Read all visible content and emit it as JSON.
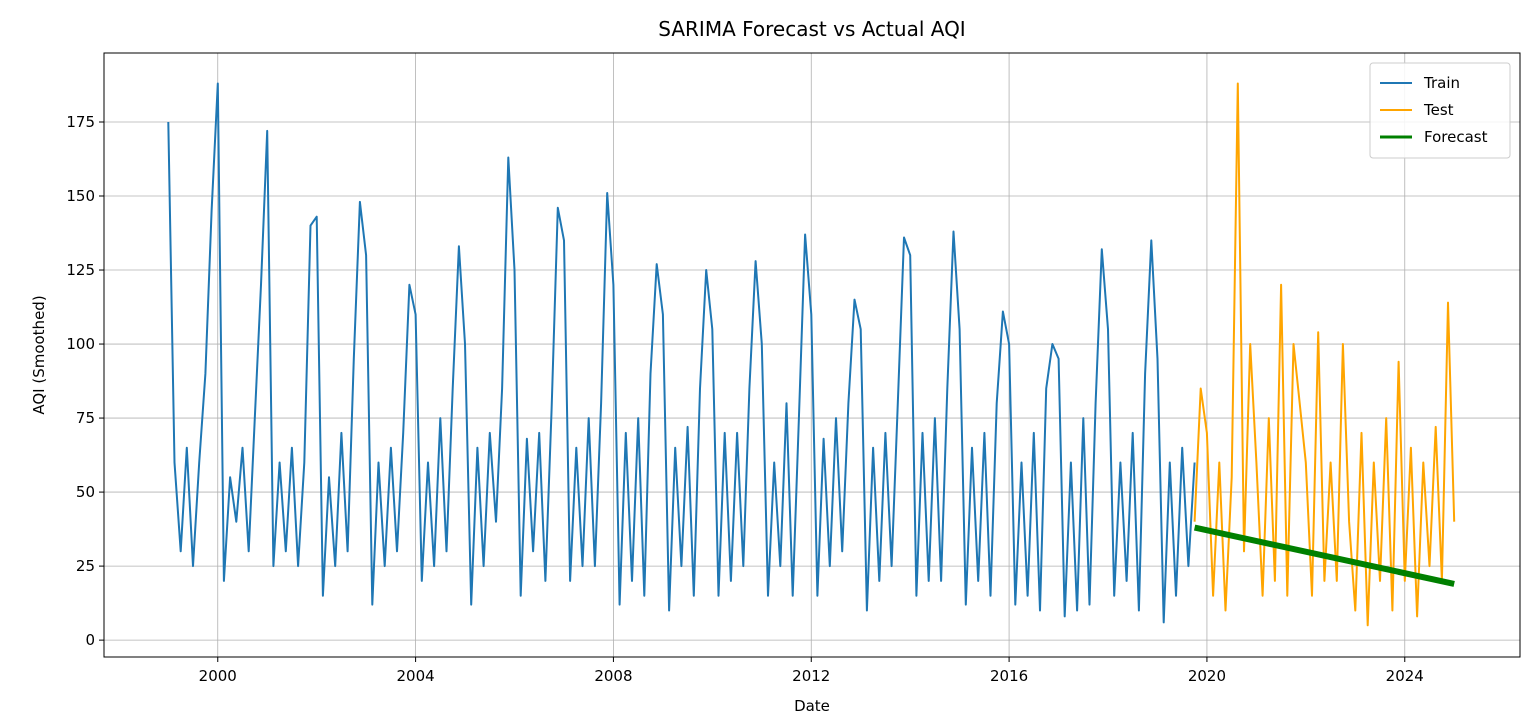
{
  "chart_data": {
    "type": "line",
    "title": "SARIMA Forecast vs Actual AQI",
    "x_label": "Date",
    "y_label": "AQI (Smoothed)",
    "xlim": [
      1997.7,
      2026.33
    ],
    "ylim": [
      -5.7,
      198.3
    ],
    "xticks": [
      2000,
      2004,
      2008,
      2012,
      2016,
      2020,
      2024
    ],
    "yticks": [
      0,
      25,
      50,
      75,
      100,
      125,
      150,
      175
    ],
    "grid": true,
    "legend": "upper right",
    "series": [
      {
        "name": "Train",
        "color": "#1f77b4",
        "width": 2,
        "x": [
          1999,
          1999.125,
          1999.25,
          1999.375,
          1999.5,
          1999.625,
          1999.75,
          1999.875,
          2000,
          2000.125,
          2000.25,
          2000.375,
          2000.5,
          2000.625,
          2000.75,
          2000.875,
          2001,
          2001.125,
          2001.25,
          2001.375,
          2001.5,
          2001.625,
          2001.75,
          2001.875,
          2002,
          2002.125,
          2002.25,
          2002.375,
          2002.5,
          2002.625,
          2002.75,
          2002.875,
          2003,
          2003.125,
          2003.25,
          2003.375,
          2003.5,
          2003.625,
          2003.75,
          2003.875,
          2004,
          2004.125,
          2004.25,
          2004.375,
          2004.5,
          2004.625,
          2004.75,
          2004.875,
          2005,
          2005.125,
          2005.25,
          2005.375,
          2005.5,
          2005.625,
          2005.75,
          2005.875,
          2006,
          2006.125,
          2006.25,
          2006.375,
          2006.5,
          2006.625,
          2006.75,
          2006.875,
          2007,
          2007.125,
          2007.25,
          2007.375,
          2007.5,
          2007.625,
          2007.75,
          2007.875,
          2008,
          2008.125,
          2008.25,
          2008.375,
          2008.5,
          2008.625,
          2008.75,
          2008.875,
          2009,
          2009.125,
          2009.25,
          2009.375,
          2009.5,
          2009.625,
          2009.75,
          2009.875,
          2010,
          2010.125,
          2010.25,
          2010.375,
          2010.5,
          2010.625,
          2010.75,
          2010.875,
          2011,
          2011.125,
          2011.25,
          2011.375,
          2011.5,
          2011.625,
          2011.75,
          2011.875,
          2012,
          2012.125,
          2012.25,
          2012.375,
          2012.5,
          2012.625,
          2012.75,
          2012.875,
          2013,
          2013.125,
          2013.25,
          2013.375,
          2013.5,
          2013.625,
          2013.75,
          2013.875,
          2014,
          2014.125,
          2014.25,
          2014.375,
          2014.5,
          2014.625,
          2014.75,
          2014.875,
          2015,
          2015.125,
          2015.25,
          2015.375,
          2015.5,
          2015.625,
          2015.75,
          2015.875,
          2016,
          2016.125,
          2016.25,
          2016.375,
          2016.5,
          2016.625,
          2016.75,
          2016.875,
          2017,
          2017.125,
          2017.25,
          2017.375,
          2017.5,
          2017.625,
          2017.75,
          2017.875,
          2018,
          2018.125,
          2018.25,
          2018.375,
          2018.5,
          2018.625,
          2018.75,
          2018.875,
          2019,
          2019.125,
          2019.25,
          2019.375,
          2019.5,
          2019.625,
          2019.75
        ],
        "values": [
          175,
          60,
          30,
          65,
          25,
          60,
          90,
          145,
          188,
          20,
          55,
          40,
          65,
          30,
          75,
          120,
          172,
          25,
          60,
          30,
          65,
          25,
          60,
          140,
          143,
          15,
          55,
          25,
          70,
          30,
          95,
          148,
          130,
          12,
          60,
          25,
          65,
          30,
          70,
          120,
          110,
          20,
          60,
          25,
          75,
          30,
          85,
          133,
          100,
          12,
          65,
          25,
          70,
          40,
          85,
          163,
          125,
          15,
          68,
          30,
          70,
          20,
          78,
          146,
          135,
          20,
          65,
          25,
          75,
          25,
          80,
          151,
          120,
          12,
          70,
          20,
          75,
          15,
          90,
          127,
          110,
          10,
          65,
          25,
          72,
          15,
          85,
          125,
          105,
          15,
          70,
          20,
          70,
          25,
          85,
          128,
          100,
          15,
          60,
          25,
          80,
          15,
          75,
          137,
          110,
          15,
          68,
          25,
          75,
          30,
          80,
          115,
          105,
          10,
          65,
          20,
          70,
          25,
          80,
          136,
          130,
          15,
          70,
          20,
          75,
          20,
          85,
          138,
          105,
          12,
          65,
          20,
          70,
          15,
          80,
          111,
          100,
          12,
          60,
          15,
          70,
          10,
          85,
          100,
          95,
          8,
          60,
          10,
          75,
          12,
          80,
          132,
          105,
          15,
          60,
          20,
          70,
          10,
          90,
          135,
          95,
          6,
          60,
          15,
          65,
          25,
          60
        ]
      },
      {
        "name": "Test",
        "color": "#ffa500",
        "width": 2,
        "x": [
          2019.75,
          2019.875,
          2020,
          2020.125,
          2020.25,
          2020.375,
          2020.5,
          2020.625,
          2020.75,
          2020.875,
          2021,
          2021.125,
          2021.25,
          2021.375,
          2021.5,
          2021.625,
          2021.75,
          2021.875,
          2022,
          2022.125,
          2022.25,
          2022.375,
          2022.5,
          2022.625,
          2022.75,
          2022.875,
          2023,
          2023.125,
          2023.25,
          2023.375,
          2023.5,
          2023.625,
          2023.75,
          2023.875,
          2024,
          2024.125,
          2024.25,
          2024.375,
          2024.5,
          2024.625,
          2024.75,
          2024.875,
          2025
        ],
        "values": [
          40,
          85,
          70,
          15,
          60,
          10,
          55,
          188,
          30,
          100,
          60,
          15,
          75,
          20,
          120,
          15,
          100,
          80,
          60,
          15,
          104,
          20,
          60,
          20,
          100,
          40,
          10,
          70,
          5,
          60,
          20,
          75,
          10,
          94,
          20,
          65,
          8,
          60,
          25,
          72,
          20,
          114,
          40
        ]
      },
      {
        "name": "Forecast",
        "color": "#008000",
        "width": 6,
        "x": [
          2019.75,
          2025
        ],
        "values": [
          38,
          19
        ]
      }
    ]
  }
}
